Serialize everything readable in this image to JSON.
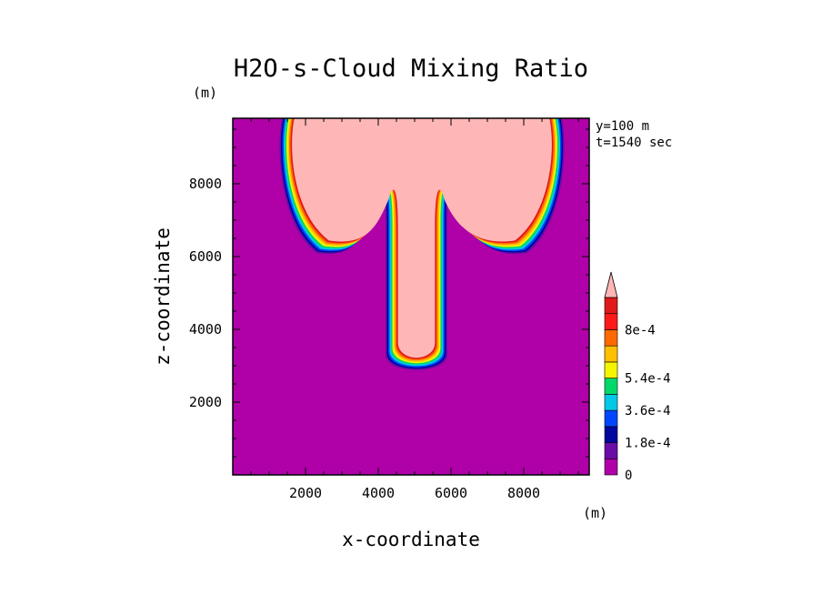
{
  "chart_data": {
    "type": "heatmap",
    "title": "H2O-s-Cloud Mixing Ratio",
    "xlabel": "x-coordinate",
    "ylabel": "z-coordinate",
    "x_unit": "(m)",
    "y_unit": "(m)",
    "annotations": [
      "y=100 m",
      "t=1540 sec"
    ],
    "xlim": [
      0,
      9800
    ],
    "ylim": [
      0,
      9800
    ],
    "x_ticks": [
      2000,
      4000,
      6000,
      8000
    ],
    "y_ticks": [
      2000,
      4000,
      6000,
      8000
    ],
    "colorbar": {
      "levels": [
        0,
        9e-05,
        0.00018,
        0.00027,
        0.00036,
        0.00045,
        0.00054,
        0.00063,
        0.00072,
        0.0008
      ],
      "labels": [
        "0",
        "1.8e-4",
        "3.6e-4",
        "5.4e-4",
        "8e-4"
      ],
      "colors": [
        "#b000a8",
        "#6a0ca8",
        "#00069e",
        "#0046ff",
        "#00c8e6",
        "#00d86a",
        "#f5f500",
        "#ffc000",
        "#ff6a00",
        "#ff1a1a",
        "#e01a1a",
        "#ffb6b6"
      ],
      "extend": "max"
    },
    "background_value": 0,
    "plume": {
      "cap": {
        "x_range": [
          1400,
          9000
        ],
        "z_range": [
          6100,
          9800
        ],
        "value_max": 0.0008
      },
      "stem": {
        "x_range": [
          4200,
          5900
        ],
        "z_range": [
          2800,
          7000
        ],
        "value_max": 0.0008
      },
      "notch_peaks_z": 8200
    }
  }
}
